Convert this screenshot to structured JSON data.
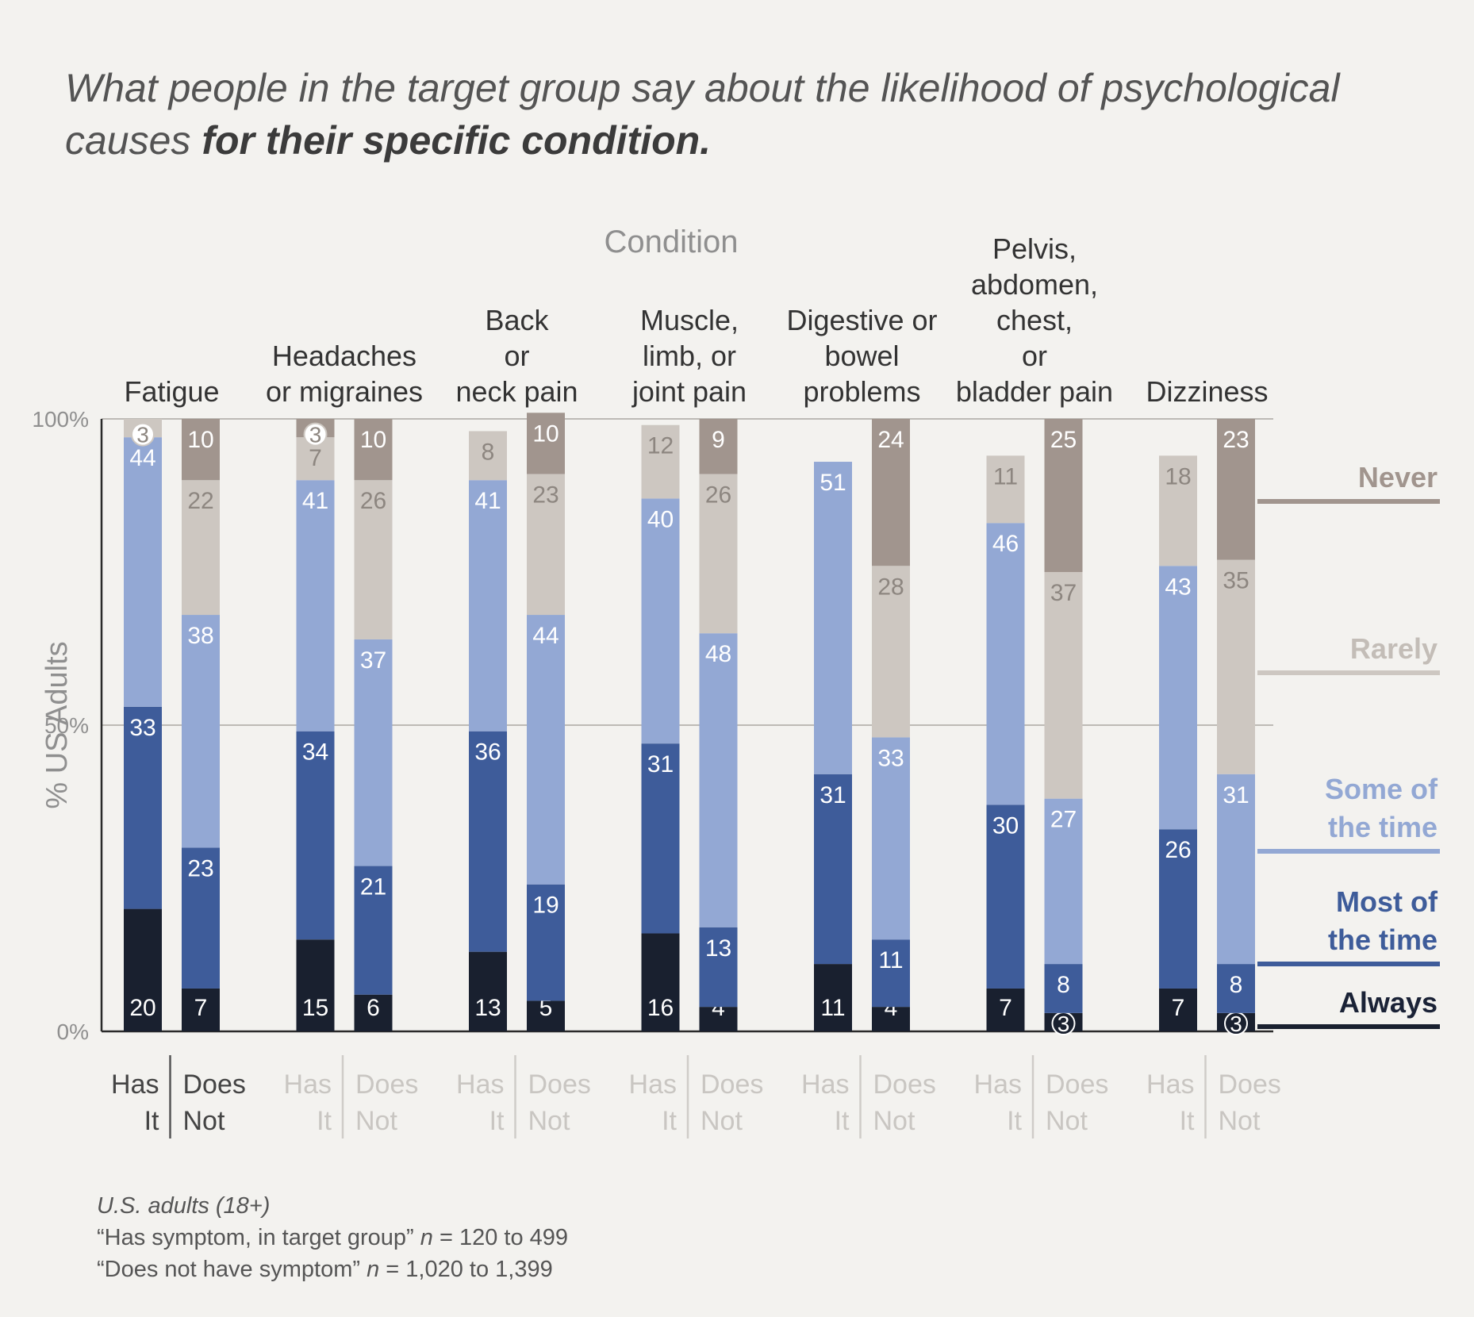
{
  "title": {
    "regular": "What people in the target group say about the likelihood of psychological causes ",
    "bold": "for their specific condition."
  },
  "footnote": {
    "line1": "U.S. adults (18+)",
    "line2_prefix": "“Has symptom, in target group” ",
    "line2_n": "n",
    "line2_suffix": " = 120 to 499",
    "line3_prefix": "“Does not have symptom” ",
    "line3_n": "n",
    "line3_suffix": " = 1,020 to 1,399"
  },
  "chart_data": {
    "type": "bar",
    "stacked": true,
    "xlabel": "Condition",
    "ylabel": "% US Adults",
    "ylim": [
      0,
      100
    ],
    "yticks": [
      "0%",
      "50%",
      "100%"
    ],
    "grid": true,
    "legend_placement": "right",
    "group_labels": [
      "Has It",
      "Does Not"
    ],
    "series": [
      {
        "name": "Always",
        "color": "#19202f",
        "label_color": "#1a2236"
      },
      {
        "name": "Most of the time",
        "color": "#3e5c9a",
        "label_color": "#3e5c9a"
      },
      {
        "name": "Some of the time",
        "color": "#93a8d4",
        "label_color": "#93a8d4"
      },
      {
        "name": "Rarely",
        "color": "#cdc7c1",
        "label_color": "#c3bdb7"
      },
      {
        "name": "Never",
        "color": "#a1958e",
        "label_color": "#a1958e"
      }
    ],
    "conditions": [
      {
        "label": [
          "Fatigue"
        ],
        "has": [
          20,
          33,
          44,
          3,
          null
        ],
        "not": [
          7,
          23,
          38,
          22,
          10
        ]
      },
      {
        "label": [
          "Headaches",
          "or migraines"
        ],
        "has": [
          15,
          34,
          41,
          7,
          3
        ],
        "not": [
          6,
          21,
          37,
          26,
          10
        ]
      },
      {
        "label": [
          "Back",
          "or",
          "neck pain"
        ],
        "has": [
          13,
          36,
          41,
          8,
          null
        ],
        "not": [
          5,
          19,
          44,
          23,
          10
        ]
      },
      {
        "label": [
          "Muscle,",
          "limb, or",
          "joint pain"
        ],
        "has": [
          16,
          31,
          40,
          12,
          null
        ],
        "not": [
          4,
          13,
          48,
          26,
          9
        ]
      },
      {
        "label": [
          "Digestive or",
          "bowel",
          "problems"
        ],
        "has": [
          11,
          31,
          51,
          null,
          null
        ],
        "not": [
          4,
          11,
          33,
          28,
          24
        ]
      },
      {
        "label": [
          "Pelvis,",
          "abdomen,",
          "chest,",
          "or",
          "bladder pain"
        ],
        "has": [
          7,
          30,
          46,
          11,
          null
        ],
        "not": [
          3,
          8,
          27,
          37,
          25
        ]
      },
      {
        "label": [
          "Dizziness"
        ],
        "has": [
          7,
          26,
          43,
          18,
          null
        ],
        "not": [
          3,
          8,
          31,
          35,
          23
        ]
      }
    ]
  }
}
